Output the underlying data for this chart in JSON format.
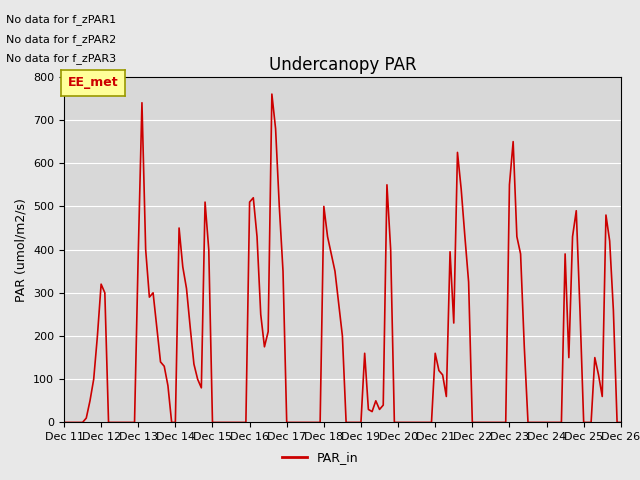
{
  "title": "Undercanopy PAR",
  "ylabel": "PAR (umol/m2/s)",
  "xlabel": "",
  "ylim": [
    0,
    800
  ],
  "yticks": [
    0,
    100,
    200,
    300,
    400,
    500,
    600,
    700,
    800
  ],
  "line_color": "#cc0000",
  "line_width": 1.2,
  "bg_color": "#e8e8e8",
  "plot_bg_color": "#d8d8d8",
  "legend_label": "PAR_in",
  "legend_line_color": "#cc0000",
  "annotations": [
    "No data for f_zPAR1",
    "No data for f_zPAR2",
    "No data for f_zPAR3"
  ],
  "annotation_box_color": "#ffff99",
  "annotation_box_edge": "#999900",
  "annotation_text": "EE_met",
  "x_tick_labels": [
    "Dec 11",
    "Dec 12",
    "Dec 13",
    "Dec 14",
    "Dec 15",
    "Dec 16",
    "Dec 17",
    "Dec 18",
    "Dec 19",
    "Dec 20",
    "Dec 21",
    "Dec 22",
    "Dec 23",
    "Dec 24",
    "Dec 25",
    "Dec 26"
  ],
  "x_values": [
    11,
    11.1,
    11.2,
    11.3,
    11.4,
    11.5,
    11.6,
    11.7,
    11.8,
    11.9,
    12.0,
    12.1,
    12.2,
    12.3,
    12.4,
    12.5,
    12.6,
    12.7,
    12.8,
    12.9,
    13.0,
    13.1,
    13.2,
    13.3,
    13.4,
    13.5,
    13.6,
    13.7,
    13.8,
    13.9,
    14.0,
    14.1,
    14.2,
    14.3,
    14.4,
    14.5,
    14.6,
    14.7,
    14.8,
    14.9,
    15.0,
    15.1,
    15.2,
    15.3,
    15.4,
    15.5,
    15.6,
    15.7,
    15.8,
    15.9,
    16.0,
    16.1,
    16.2,
    16.3,
    16.4,
    16.5,
    16.6,
    16.7,
    16.8,
    16.9,
    17.0,
    17.1,
    17.2,
    17.3,
    17.4,
    17.5,
    17.6,
    17.7,
    17.8,
    17.9,
    18.0,
    18.1,
    18.2,
    18.3,
    18.4,
    18.5,
    18.6,
    18.7,
    18.8,
    18.9,
    19.0,
    19.1,
    19.2,
    19.3,
    19.4,
    19.5,
    19.6,
    19.7,
    19.8,
    19.9,
    20.0,
    20.1,
    20.2,
    20.3,
    20.4,
    20.5,
    20.6,
    20.7,
    20.8,
    20.9,
    21.0,
    21.1,
    21.2,
    21.3,
    21.4,
    21.5,
    21.6,
    21.7,
    21.8,
    21.9,
    22.0,
    22.1,
    22.2,
    22.3,
    22.4,
    22.5,
    22.6,
    22.7,
    22.8,
    22.9,
    23.0,
    23.1,
    23.2,
    23.3,
    23.4,
    23.5,
    23.6,
    23.7,
    23.8,
    23.9,
    24.0,
    24.1,
    24.2,
    24.3,
    24.4,
    24.5,
    24.6,
    24.7,
    24.8,
    24.9,
    25.0,
    25.1,
    25.2,
    25.3,
    25.4,
    25.5,
    25.6,
    25.7,
    25.8,
    25.9,
    26.0
  ],
  "y_values": [
    0,
    0,
    0,
    0,
    0,
    0,
    10,
    50,
    100,
    200,
    320,
    300,
    0,
    0,
    0,
    0,
    0,
    0,
    0,
    0,
    390,
    740,
    400,
    290,
    300,
    220,
    140,
    130,
    85,
    0,
    0,
    450,
    360,
    310,
    220,
    135,
    100,
    80,
    510,
    400,
    0,
    0,
    0,
    0,
    0,
    0,
    0,
    0,
    0,
    0,
    510,
    520,
    430,
    250,
    175,
    210,
    760,
    680,
    500,
    350,
    0,
    0,
    0,
    0,
    0,
    0,
    0,
    0,
    0,
    0,
    500,
    430,
    390,
    350,
    275,
    200,
    0,
    0,
    0,
    0,
    0,
    160,
    30,
    25,
    50,
    30,
    40,
    550,
    400,
    0,
    0,
    0,
    0,
    0,
    0,
    0,
    0,
    0,
    0,
    0,
    160,
    120,
    110,
    60,
    395,
    230,
    625,
    540,
    430,
    325,
    0,
    0,
    0,
    0,
    0,
    0,
    0,
    0,
    0,
    0,
    550,
    650,
    430,
    390,
    175,
    0,
    0,
    0,
    0,
    0,
    0,
    0,
    0,
    0,
    0,
    390,
    150,
    430,
    490,
    260,
    0,
    0,
    0,
    150,
    110,
    60,
    480,
    420,
    260,
    0,
    0
  ]
}
